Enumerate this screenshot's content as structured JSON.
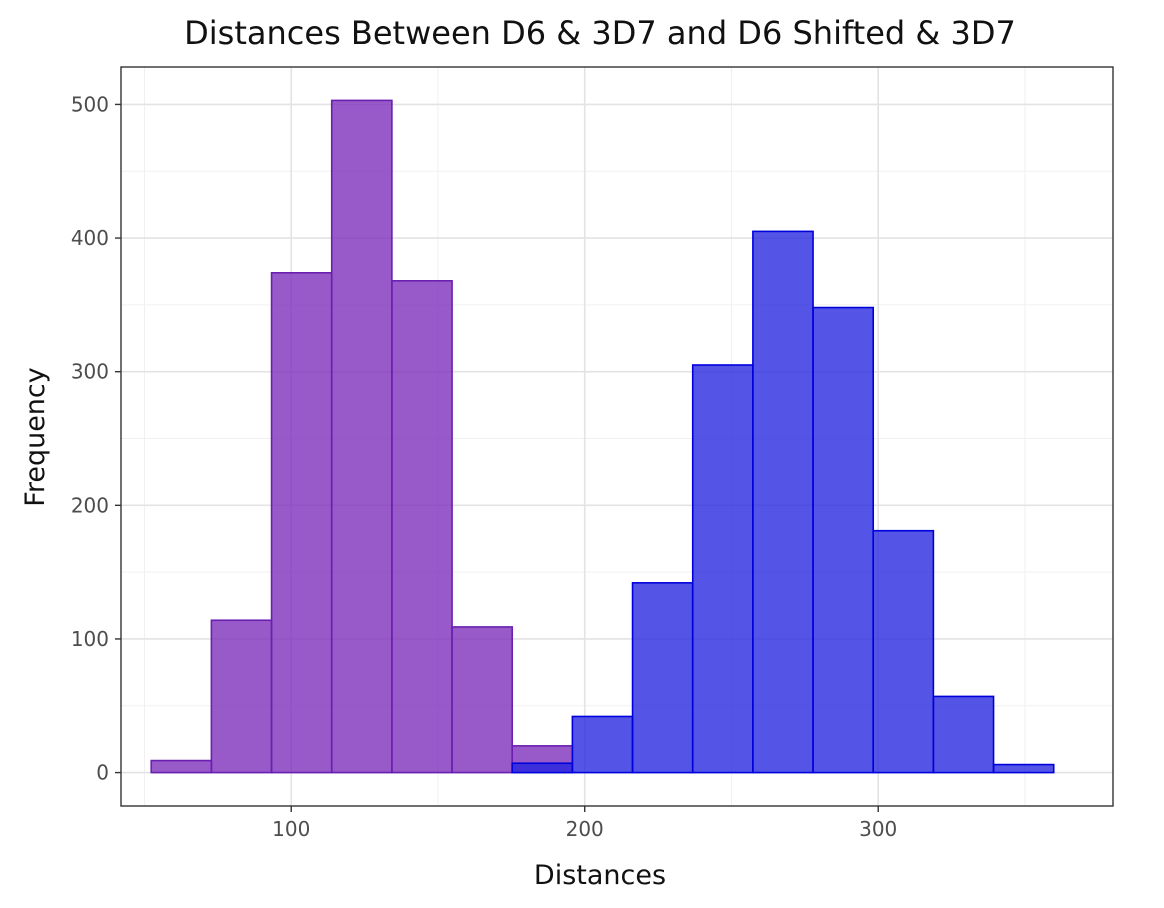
{
  "chart_data": {
    "type": "bar",
    "title": "Distances Between D6 & 3D7 and D6 Shifted & 3D7",
    "xlabel": "Distances",
    "ylabel": "Frequency",
    "xlim": [
      42,
      380
    ],
    "ylim": [
      -25,
      528
    ],
    "x_ticks": [
      100,
      200,
      300
    ],
    "y_ticks": [
      0,
      100,
      200,
      300,
      400,
      500
    ],
    "x_tick_labels": [
      "100",
      "200",
      "300"
    ],
    "y_tick_labels": [
      "0",
      "100",
      "200",
      "300",
      "400",
      "500"
    ],
    "grid": true,
    "legend": "none",
    "series": [
      {
        "fill": "#7b2bba",
        "stroke": "#6a1fb0",
        "bins": [
          {
            "start": 52.3,
            "end": 72.8,
            "count": 9
          },
          {
            "start": 72.8,
            "end": 93.3,
            "count": 114
          },
          {
            "start": 93.3,
            "end": 113.8,
            "count": 374
          },
          {
            "start": 113.8,
            "end": 134.3,
            "count": 503
          },
          {
            "start": 134.3,
            "end": 154.8,
            "count": 368
          },
          {
            "start": 154.8,
            "end": 175.3,
            "count": 109
          },
          {
            "start": 175.3,
            "end": 195.8,
            "count": 20
          }
        ]
      },
      {
        "fill": "#2424e0",
        "stroke": "#0000dd",
        "bins": [
          {
            "start": 175.3,
            "end": 195.8,
            "count": 7
          },
          {
            "start": 195.8,
            "end": 216.3,
            "count": 42
          },
          {
            "start": 216.3,
            "end": 236.8,
            "count": 142
          },
          {
            "start": 236.8,
            "end": 257.3,
            "count": 305
          },
          {
            "start": 257.3,
            "end": 277.8,
            "count": 405
          },
          {
            "start": 277.8,
            "end": 298.3,
            "count": 348
          },
          {
            "start": 298.3,
            "end": 318.8,
            "count": 181
          },
          {
            "start": 318.8,
            "end": 339.3,
            "count": 57
          },
          {
            "start": 339.3,
            "end": 359.8,
            "count": 6
          }
        ]
      }
    ]
  }
}
